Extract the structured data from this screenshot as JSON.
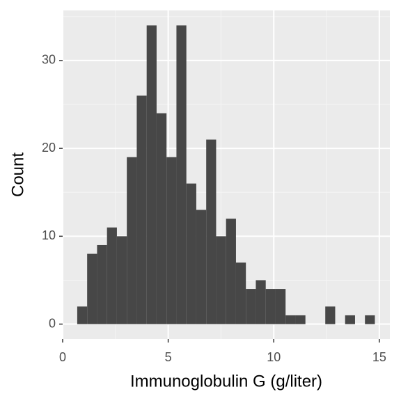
{
  "chart_data": {
    "type": "histogram",
    "x_label": "Immunoglobulin G (g/liter)",
    "y_label": "Count",
    "bins": [
      0.69,
      1.16,
      1.63,
      2.1,
      2.57,
      3.04,
      3.51,
      3.98,
      4.45,
      4.92,
      5.39,
      5.86,
      6.33,
      6.8,
      7.27,
      7.74,
      8.21,
      8.68,
      9.15,
      9.62,
      10.09,
      10.56,
      11.03,
      11.5,
      11.97,
      12.44,
      12.91,
      13.38,
      13.85,
      14.32,
      14.79
    ],
    "values": [
      2,
      8,
      9,
      11,
      10,
      19,
      26,
      34,
      24,
      19,
      34,
      16,
      13,
      21,
      10,
      12,
      7,
      4,
      5,
      4,
      4,
      1,
      1,
      0,
      0,
      2,
      0,
      1,
      0,
      1
    ],
    "color": "#474747",
    "xlim": [
      0,
      15.5
    ],
    "ylim": [
      -1.7,
      35.7
    ],
    "xticks": [
      0,
      5,
      10,
      15
    ],
    "yticks": [
      0,
      10,
      20,
      30
    ],
    "xminor": [
      2.5,
      7.5,
      12.5
    ],
    "yminor": [
      5,
      15,
      25,
      35
    ],
    "grid": true
  }
}
